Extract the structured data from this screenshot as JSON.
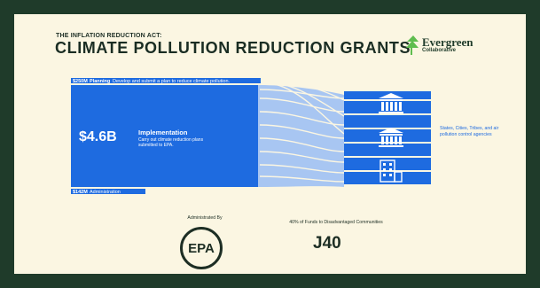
{
  "header": {
    "kicker": "THE INFLATION REDUCTION ACT:",
    "title": "CLIMATE POLLUTION REDUCTION GRANTS"
  },
  "logo": {
    "name": "Evergreen",
    "subtitle": "Collaborative"
  },
  "flows": {
    "planning": {
      "amount": "$250M",
      "label": "Planning",
      "description": "Develop and submit a plan to reduce climate pollution."
    },
    "implementation": {
      "amount": "$4.6B",
      "label": "Implementation",
      "description": "Carry out climate reduction plans submitted to EPA."
    },
    "administration": {
      "amount": "$142M",
      "label": "Administration"
    }
  },
  "recipients": {
    "text": "States, Cities, Tribes, and air pollution control agencies"
  },
  "footer": {
    "administered_by": "Administrated By",
    "agency": "EPA",
    "j40_caption": "40% of Funds to Disadvantaged Communities",
    "j40": "J40"
  },
  "colors": {
    "background": "#fbf6e2",
    "frame": "#1f3b2a",
    "blue": "#1e6be0",
    "light_blue": "#a8c6f2",
    "dark_text": "#1d2e24"
  },
  "icons": [
    "building-icon",
    "building-icon",
    "building-icon"
  ]
}
